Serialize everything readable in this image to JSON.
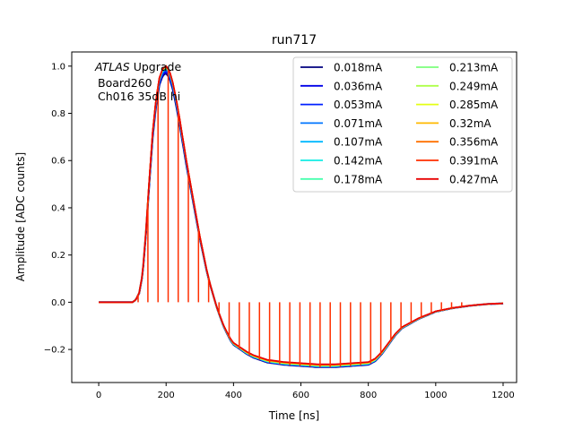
{
  "chart_data": {
    "type": "line",
    "title": "run717",
    "xlabel": "Time [ns]",
    "ylabel": "Amplitude [ADC counts]",
    "xlim": [
      -80,
      1240
    ],
    "ylim": [
      -0.34,
      1.06
    ],
    "xticks": [
      0,
      200,
      400,
      600,
      800,
      1000,
      1200
    ],
    "yticks": [
      -0.2,
      0.0,
      0.2,
      0.4,
      0.6,
      0.8,
      1.0
    ],
    "xtick_labels": [
      "0",
      "200",
      "400",
      "600",
      "800",
      "1000",
      "1200"
    ],
    "ytick_labels": [
      "−0.2",
      "0.0",
      "0.2",
      "0.4",
      "0.6",
      "0.8",
      "1.0"
    ],
    "annotation": {
      "line1_italic": "ATLAS",
      "line1_rest": " Upgrade",
      "line2": "Board260",
      "line3": "Ch016 35dB hi"
    },
    "legend_placement": "top-right",
    "grid": false,
    "pulse_shape": {
      "x": [
        0,
        100,
        110,
        120,
        130,
        140,
        150,
        160,
        170,
        180,
        190,
        200,
        210,
        220,
        230,
        240,
        250,
        260,
        270,
        280,
        290,
        300,
        310,
        320,
        330,
        340,
        350,
        360,
        370,
        380,
        390,
        400,
        420,
        440,
        460,
        480,
        500,
        550,
        600,
        650,
        700,
        750,
        800,
        820,
        840,
        860,
        880,
        900,
        950,
        1000,
        1050,
        1100,
        1150,
        1200
      ],
      "y": [
        0.0,
        0.0,
        0.01,
        0.04,
        0.12,
        0.3,
        0.52,
        0.72,
        0.86,
        0.95,
        0.99,
        1.0,
        0.98,
        0.93,
        0.86,
        0.78,
        0.69,
        0.6,
        0.52,
        0.44,
        0.36,
        0.28,
        0.21,
        0.14,
        0.08,
        0.03,
        -0.02,
        -0.06,
        -0.1,
        -0.13,
        -0.16,
        -0.18,
        -0.2,
        -0.22,
        -0.235,
        -0.245,
        -0.255,
        -0.265,
        -0.27,
        -0.275,
        -0.275,
        -0.27,
        -0.265,
        -0.25,
        -0.22,
        -0.18,
        -0.14,
        -0.11,
        -0.07,
        -0.04,
        -0.025,
        -0.015,
        -0.008,
        -0.005
      ]
    },
    "sample_stems": {
      "x": [
        117,
        146,
        176,
        206,
        236,
        266,
        296,
        326,
        357,
        387,
        417,
        447,
        477,
        507,
        537,
        567,
        597,
        627,
        657,
        687,
        717,
        747,
        777,
        807,
        837,
        867,
        897,
        927,
        957,
        987,
        1017,
        1047,
        1077
      ]
    },
    "series": [
      {
        "name": "0.018mA",
        "color": "#00007f",
        "scale": 0.97
      },
      {
        "name": "0.036mA",
        "color": "#0000e8",
        "scale": 0.975
      },
      {
        "name": "0.053mA",
        "color": "#0020ff",
        "scale": 0.98
      },
      {
        "name": "0.071mA",
        "color": "#0074ff",
        "scale": 0.985
      },
      {
        "name": "0.107mA",
        "color": "#00b8ff",
        "scale": 0.99
      },
      {
        "name": "0.142mA",
        "color": "#13ede4",
        "scale": 0.993
      },
      {
        "name": "0.178mA",
        "color": "#48ffae",
        "scale": 0.995
      },
      {
        "name": "0.213mA",
        "color": "#7bff7b",
        "scale": 0.996
      },
      {
        "name": "0.249mA",
        "color": "#aeff48",
        "scale": 0.997
      },
      {
        "name": "0.285mA",
        "color": "#e4ff13",
        "scale": 0.998
      },
      {
        "name": "0.32mA",
        "color": "#ffb800",
        "scale": 0.999
      },
      {
        "name": "0.356mA",
        "color": "#ff7000",
        "scale": 1.0
      },
      {
        "name": "0.391mA",
        "color": "#ff2f00",
        "scale": 1.0
      },
      {
        "name": "0.427mA",
        "color": "#e80000",
        "scale": 1.0
      }
    ]
  }
}
